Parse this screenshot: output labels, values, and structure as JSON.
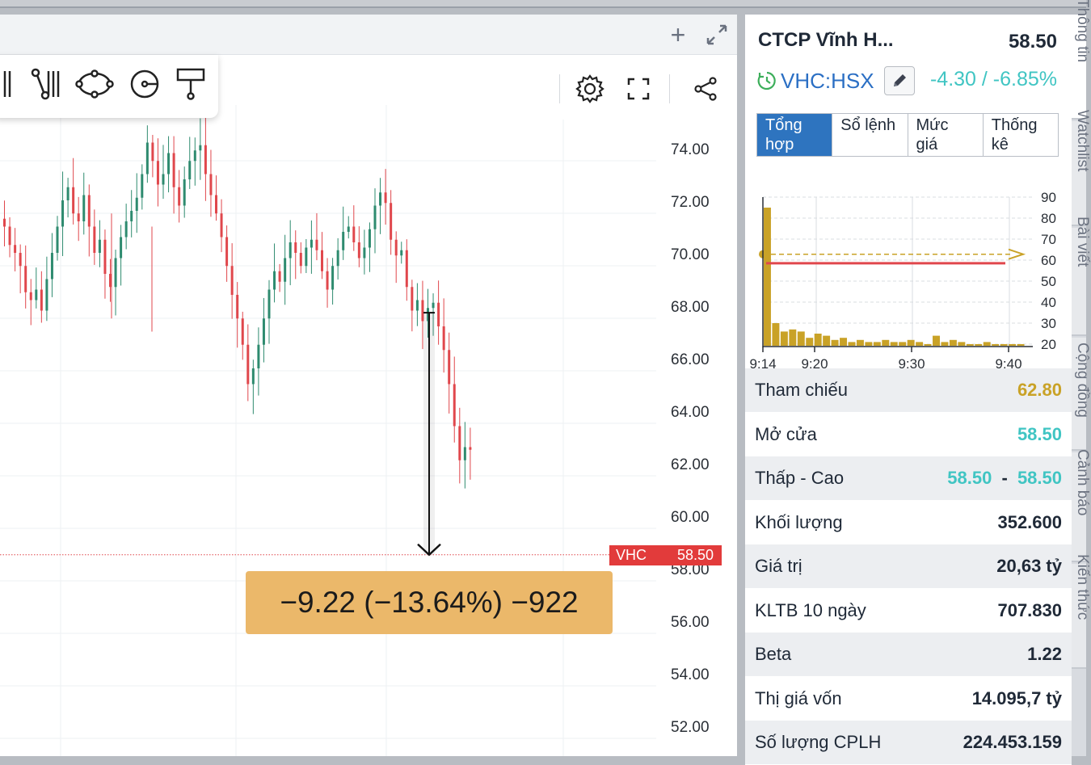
{
  "chart_toolbar": {
    "add_label": "+",
    "tools": [
      "ruler-tool-icon",
      "path-tool-icon",
      "ellipse-tool-icon",
      "circle-tool-icon",
      "signpost-tool-icon"
    ],
    "right_tools": [
      "settings-icon",
      "fullscreen-icon",
      "share-icon"
    ]
  },
  "main_chart": {
    "y_ticks": [
      "74.00",
      "72.00",
      "70.00",
      "68.00",
      "66.00",
      "64.00",
      "62.00",
      "60.00",
      "58.00",
      "56.00",
      "54.00",
      "52.00"
    ],
    "price_tag": {
      "symbol": "VHC",
      "value": "58.50"
    },
    "measure_text": "−9.22 (−13.64%) −922",
    "colors": {
      "up": "#2e8b6f",
      "down": "#e0474c",
      "measure_box": "#ebb86a"
    }
  },
  "chart_data": [
    {
      "type": "candlestick",
      "title": "",
      "ylim": [
        51,
        75.5
      ],
      "y_tick_values": [
        74,
        72,
        70,
        68,
        66,
        64,
        62,
        60,
        58,
        56,
        54,
        52
      ],
      "last_price": 58.5,
      "measurement": {
        "from": 67.72,
        "to": 58.5,
        "change": -9.22,
        "percent": -13.64
      },
      "close_path": [
        71.0,
        70.3,
        70.0,
        69.5,
        68.5,
        68.2,
        68.6,
        67.8,
        69.0,
        70.0,
        71.0,
        72.0,
        72.5,
        71.5,
        71.2,
        72.2,
        71.0,
        70.0,
        70.5,
        69.2,
        68.7,
        69.8,
        70.6,
        71.2,
        71.6,
        72.1,
        73.0,
        74.2,
        73.5,
        72.6,
        73.0,
        73.8,
        72.5,
        71.8,
        72.8,
        73.5,
        73.9,
        74.1,
        73.0,
        72.2,
        71.5,
        70.6,
        69.5,
        68.4,
        67.5,
        66.5,
        65.0,
        65.6,
        66.5,
        67.5,
        68.6,
        69.3,
        68.9,
        69.8,
        70.4,
        70.0,
        69.5,
        70.2,
        70.5,
        70.1,
        69.3,
        68.6,
        69.5,
        70.1,
        70.8,
        71.0,
        70.4,
        69.8,
        70.2,
        70.9,
        71.8,
        72.3,
        71.9,
        70.5,
        69.9,
        70.1,
        68.7,
        67.8,
        68.2,
        67.4,
        67.9,
        68.1,
        67.2,
        66.3,
        65.0,
        63.4,
        62.1,
        62.6,
        62.5
      ],
      "volume_chart": {
        "type": "bar",
        "x_ticks": [
          "9:14",
          "9:20",
          "9:30",
          "9:40"
        ],
        "y_ticks": [
          "90",
          "80",
          "70",
          "60",
          "50",
          "40",
          "30",
          "20"
        ],
        "ylim": [
          20,
          93
        ],
        "reference_value": 62.8,
        "price_line": 58.5,
        "values": [
          85,
          30,
          26,
          27,
          26,
          23,
          25,
          24,
          22,
          23,
          21,
          22,
          21,
          21,
          22,
          21,
          21,
          22,
          21,
          20,
          24,
          21,
          22,
          21,
          20,
          20,
          21,
          20,
          20,
          20,
          20
        ]
      }
    }
  ],
  "quote": {
    "company": "CTCP Vĩnh H...",
    "price": "58.50",
    "ticker": "VHC:HSX",
    "change": "-4.30 / -6.85%",
    "colors": {
      "teal": "#40c5c3",
      "ref": "#c9a227",
      "link": "#2b6fc4"
    }
  },
  "tabs": [
    "Tổng hợp",
    "Sổ lệnh",
    "Mức giá",
    "Thống kê"
  ],
  "stats": [
    {
      "label": "Tham chiếu",
      "value": "62.80",
      "color": "#c9a227"
    },
    {
      "label": "Mở cửa",
      "value": "58.50",
      "color": "#40c5c3"
    },
    {
      "label": "Thấp - Cao",
      "value": "58.50",
      "value2": "58.50",
      "sep": "-",
      "color": "#40c5c3"
    },
    {
      "label": "Khối lượng",
      "value": "352.600",
      "color": "#1f2937"
    },
    {
      "label": "Giá trị",
      "value": "20,63 tỷ",
      "color": "#1f2937"
    },
    {
      "label": "KLTB 10 ngày",
      "value": "707.830",
      "color": "#1f2937"
    },
    {
      "label": "Beta",
      "value": "1.22",
      "color": "#1f2937"
    },
    {
      "label": "Thị giá vốn",
      "value": "14.095,7 tỷ",
      "color": "#1f2937"
    },
    {
      "label": "Số lượng CPLH",
      "value": "224.453.159",
      "color": "#1f2937"
    }
  ],
  "side_tabs": [
    "Thông tin",
    "Watchlist",
    "Bài viết",
    "Cộng đồng",
    "Cảnh báo",
    "Kiến thức"
  ]
}
